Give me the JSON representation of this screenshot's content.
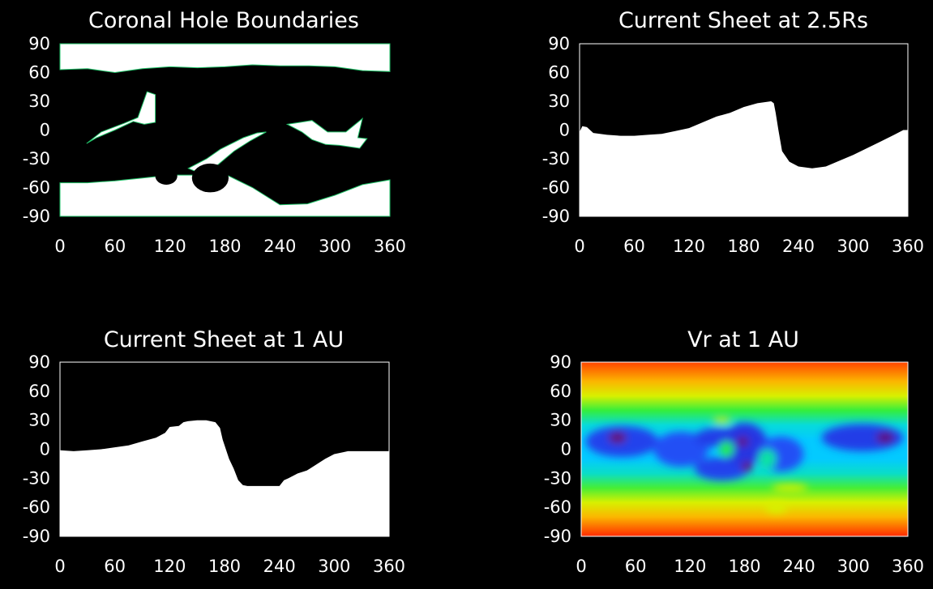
{
  "chart_data": [
    {
      "type": "heatmap",
      "title": "Coronal Hole Boundaries",
      "xlim": [
        0,
        360
      ],
      "ylim": [
        -90,
        90
      ],
      "xticks": [
        "0",
        "60",
        "120",
        "180",
        "240",
        "300",
        "360"
      ],
      "yticks": [
        "90",
        "60",
        "30",
        "0",
        "-30",
        "-60",
        "-90"
      ],
      "colors": {
        "open_field": "#ffffff",
        "closed_field": "#000000"
      },
      "north_boundary": [
        [
          0,
          63
        ],
        [
          30,
          64
        ],
        [
          60,
          60
        ],
        [
          90,
          64
        ],
        [
          120,
          66
        ],
        [
          150,
          65
        ],
        [
          180,
          66
        ],
        [
          210,
          68
        ],
        [
          240,
          67
        ],
        [
          270,
          67
        ],
        [
          300,
          66
        ],
        [
          330,
          62
        ],
        [
          360,
          61
        ]
      ],
      "south_boundary": [
        [
          0,
          -55
        ],
        [
          30,
          -55
        ],
        [
          60,
          -53
        ],
        [
          90,
          -50
        ],
        [
          120,
          -47
        ],
        [
          150,
          -47
        ],
        [
          180,
          -46
        ],
        [
          210,
          -60
        ],
        [
          240,
          -78
        ],
        [
          270,
          -77
        ],
        [
          300,
          -68
        ],
        [
          330,
          -57
        ],
        [
          360,
          -52
        ]
      ],
      "islands": [
        [
          [
            29,
            -14
          ],
          [
            45,
            -2
          ],
          [
            70,
            7
          ],
          [
            85,
            13
          ],
          [
            95,
            40
          ],
          [
            104,
            37
          ],
          [
            104,
            8
          ],
          [
            92,
            6
          ],
          [
            80,
            9
          ],
          [
            60,
            0
          ],
          [
            40,
            -8
          ]
        ],
        [
          [
            140,
            -40
          ],
          [
            160,
            -30
          ],
          [
            175,
            -20
          ],
          [
            200,
            -8
          ],
          [
            215,
            -3
          ],
          [
            225,
            -2
          ],
          [
            208,
            -11
          ],
          [
            190,
            -22
          ],
          [
            170,
            -38
          ],
          [
            150,
            -44
          ]
        ],
        [
          [
            248,
            6
          ],
          [
            264,
            -2
          ],
          [
            275,
            -10
          ],
          [
            290,
            -15
          ],
          [
            305,
            -16
          ],
          [
            327,
            -19
          ],
          [
            335,
            -9
          ],
          [
            325,
            -8
          ],
          [
            330,
            12
          ],
          [
            312,
            -2
          ],
          [
            292,
            -2
          ],
          [
            275,
            10
          ],
          [
            262,
            8
          ]
        ]
      ],
      "holes": [
        {
          "center": [
            116,
            -48
          ],
          "radii": [
            12,
            9
          ]
        },
        {
          "center": [
            164,
            -50
          ],
          "radii": [
            20,
            15
          ]
        }
      ]
    },
    {
      "type": "area",
      "title": "Current Sheet at 2.5Rs",
      "xlim": [
        0,
        360
      ],
      "ylim": [
        -90,
        90
      ],
      "xticks": [
        "0",
        "60",
        "120",
        "180",
        "240",
        "300",
        "360"
      ],
      "yticks": [
        "90",
        "60",
        "30",
        "0",
        "-30",
        "-60",
        "-90"
      ],
      "colors": {
        "below": "#ffffff",
        "above": "#000000"
      },
      "x": [
        0,
        3,
        8,
        15,
        30,
        45,
        60,
        75,
        90,
        105,
        120,
        135,
        150,
        165,
        180,
        195,
        210,
        213,
        215,
        218,
        222,
        230,
        240,
        255,
        270,
        285,
        300,
        315,
        330,
        345,
        355,
        360
      ],
      "y": [
        -2,
        4,
        3,
        -3,
        -5,
        -6,
        -6,
        -5,
        -4,
        -1,
        2,
        8,
        14,
        18,
        24,
        28,
        30,
        28,
        18,
        0,
        -22,
        -33,
        -38,
        -40,
        -38,
        -32,
        -26,
        -19,
        -12,
        -5,
        0,
        0
      ]
    },
    {
      "type": "area",
      "title": "Current Sheet at 1 AU",
      "xlim": [
        0,
        360
      ],
      "ylim": [
        -90,
        90
      ],
      "xticks": [
        "0",
        "60",
        "120",
        "180",
        "240",
        "300",
        "360"
      ],
      "yticks": [
        "90",
        "60",
        "30",
        "0",
        "-30",
        "-60",
        "-90"
      ],
      "colors": {
        "below": "#ffffff",
        "above": "#000000"
      },
      "x": [
        0,
        15,
        30,
        45,
        60,
        75,
        90,
        105,
        115,
        120,
        130,
        135,
        140,
        150,
        160,
        170,
        175,
        178,
        185,
        190,
        195,
        200,
        205,
        210,
        220,
        230,
        240,
        245,
        250,
        260,
        270,
        280,
        290,
        300,
        310,
        315,
        325,
        340,
        360
      ],
      "y": [
        -1,
        -2,
        -1,
        0,
        2,
        4,
        8,
        12,
        17,
        23,
        24,
        28,
        29,
        30,
        30,
        28,
        22,
        10,
        -10,
        -20,
        -32,
        -37,
        -38,
        -38,
        -38,
        -38,
        -38,
        -32,
        -30,
        -25,
        -22,
        -16,
        -10,
        -5,
        -3,
        -2,
        -2,
        -2,
        -2
      ]
    },
    {
      "type": "heatmap",
      "title": "Vr at 1 AU",
      "xlim": [
        0,
        360
      ],
      "ylim": [
        -90,
        90
      ],
      "xticks": [
        "0",
        "60",
        "120",
        "180",
        "240",
        "300",
        "360"
      ],
      "yticks": [
        "90",
        "60",
        "30",
        "0",
        "-30",
        "-60",
        "-90"
      ],
      "color_scale": [
        "#7b0043",
        "#2a1ccf",
        "#1e5cff",
        "#00d6ff",
        "#22ee44",
        "#d8f000",
        "#ffb000",
        "#ff2a00"
      ],
      "background_levels": [
        [
          90,
          6.8
        ],
        [
          70,
          5.9
        ],
        [
          55,
          5.0
        ],
        [
          40,
          4.1
        ],
        [
          25,
          3.2
        ],
        [
          10,
          2.9
        ],
        [
          -10,
          2.9
        ],
        [
          -25,
          3.3
        ],
        [
          -40,
          4.2
        ],
        [
          -55,
          5.0
        ],
        [
          -70,
          5.9
        ],
        [
          -90,
          7.0
        ]
      ],
      "features": [
        {
          "center": [
            45,
            8
          ],
          "radius": [
            40,
            16
          ],
          "level": 1.6
        },
        {
          "center": [
            40,
            12
          ],
          "radius": [
            10,
            6
          ],
          "level": 0.3
        },
        {
          "center": [
            110,
            0
          ],
          "radius": [
            30,
            18
          ],
          "level": 1.8
        },
        {
          "center": [
            150,
            12
          ],
          "radius": [
            25,
            10
          ],
          "level": 1.5
        },
        {
          "center": [
            155,
            -20
          ],
          "radius": [
            30,
            12
          ],
          "level": 1.6
        },
        {
          "center": [
            180,
            5
          ],
          "radius": [
            25,
            22
          ],
          "level": 1.4
        },
        {
          "center": [
            178,
            8
          ],
          "radius": [
            6,
            5
          ],
          "level": 0.3
        },
        {
          "center": [
            183,
            -18
          ],
          "radius": [
            6,
            5
          ],
          "level": 0.3
        },
        {
          "center": [
            220,
            -5
          ],
          "radius": [
            25,
            18
          ],
          "level": 1.8
        },
        {
          "center": [
            310,
            12
          ],
          "radius": [
            45,
            14
          ],
          "level": 1.5
        },
        {
          "center": [
            335,
            12
          ],
          "radius": [
            10,
            6
          ],
          "level": 0.4
        },
        {
          "center": [
            155,
            30
          ],
          "radius": [
            10,
            3
          ],
          "level": 5.0
        },
        {
          "center": [
            160,
            0
          ],
          "radius": [
            8,
            8
          ],
          "level": 4.0
        },
        {
          "center": [
            230,
            -40
          ],
          "radius": [
            20,
            4
          ],
          "level": 5.0
        },
        {
          "center": [
            215,
            -60
          ],
          "radius": [
            12,
            6
          ],
          "level": 5.0
        },
        {
          "center": [
            205,
            -10
          ],
          "radius": [
            10,
            10
          ],
          "level": 3.5
        }
      ]
    }
  ]
}
